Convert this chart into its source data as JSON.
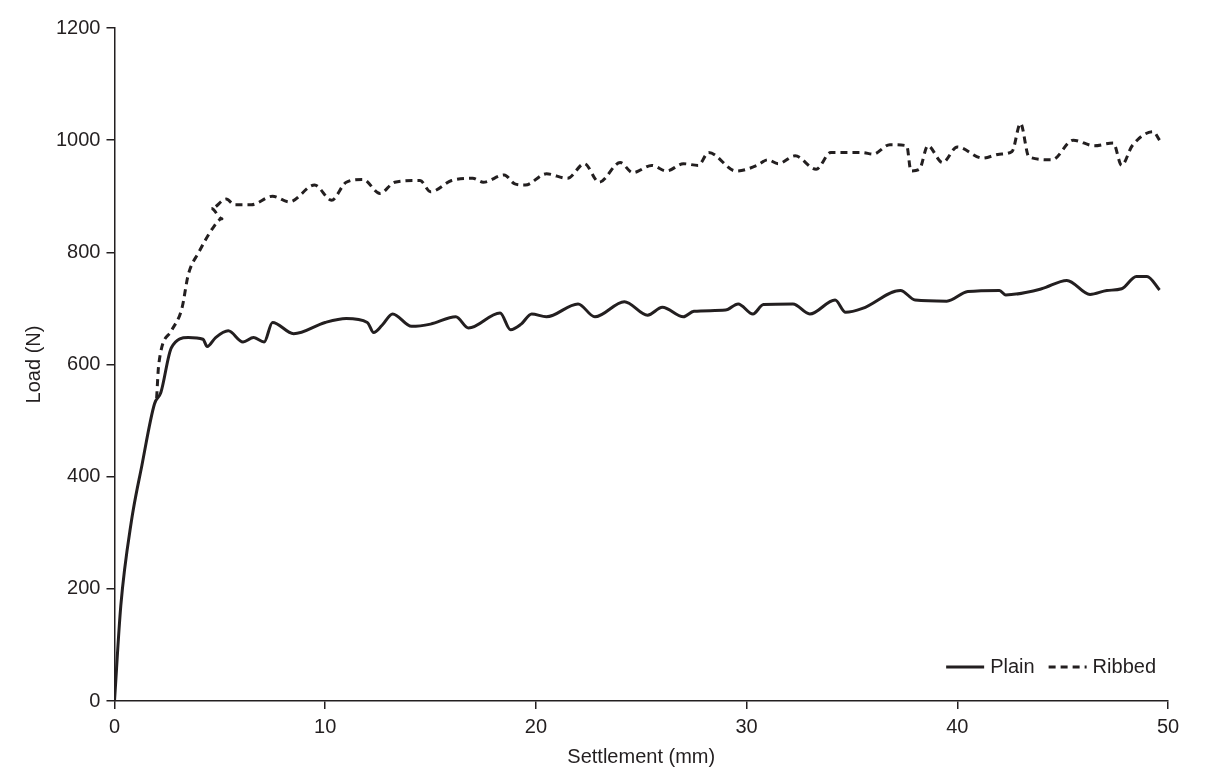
{
  "chart_data": {
    "type": "line",
    "xlabel": "Settlement (mm)",
    "ylabel": "Load (N)",
    "xlim": [
      0,
      50
    ],
    "xticks": [
      0,
      10,
      20,
      30,
      40,
      50
    ],
    "ylim": [
      0,
      1200
    ],
    "yticks": [
      0,
      200,
      400,
      600,
      800,
      1000,
      1200
    ],
    "grid": false,
    "legend": "bottom right",
    "marker": "none",
    "series": [
      {
        "name": "Plain",
        "color": "#231f20",
        "line_style": "solid",
        "x": [
          0,
          0.3,
          0.8,
          1.3,
          1.9,
          2.2,
          2.7,
          3.5,
          4.2,
          4.4,
          4.8,
          5.4,
          6.1,
          6.6,
          7.1,
          7.5,
          8.5,
          10,
          11,
          12,
          12.3,
          12.7,
          13.2,
          14.1,
          15,
          16.2,
          16.8,
          18.3,
          18.8,
          19.3,
          19.8,
          20.5,
          22,
          22.8,
          24.2,
          25.3,
          26,
          27,
          27.5,
          29,
          29.6,
          30.3,
          30.8,
          32.2,
          33,
          34.2,
          34.7,
          35.5,
          37.3,
          38,
          39.5,
          40.5,
          42,
          42.3,
          44,
          45.2,
          46.3,
          47.1,
          47.8,
          48.5,
          49,
          49.6
        ],
        "values": [
          0,
          170,
          320,
          420,
          530,
          550,
          630,
          648,
          645,
          632,
          648,
          660,
          640,
          648,
          640,
          675,
          655,
          675,
          682,
          675,
          657,
          670,
          690,
          668,
          672,
          685,
          665,
          692,
          662,
          672,
          690,
          685,
          708,
          685,
          712,
          688,
          702,
          685,
          695,
          697,
          708,
          690,
          707,
          708,
          690,
          715,
          693,
          700,
          732,
          715,
          713,
          730,
          732,
          724,
          735,
          750,
          725,
          732,
          735,
          757,
          757,
          733
        ]
      },
      {
        "name": "Ribbed",
        "color": "#231f20",
        "line_style": "dashed",
        "x": [
          2,
          2.1,
          2.7,
          3.2,
          3.5,
          4,
          4.7,
          5.1,
          4.6,
          5.3,
          5.7,
          6.5,
          7.5,
          8.3,
          9.5,
          10.3,
          11,
          11.8,
          12.6,
          13.3,
          14.5,
          15,
          16,
          17,
          17.5,
          18.5,
          19,
          19.5,
          20.5,
          21.5,
          22.3,
          23,
          24,
          24.6,
          25.5,
          26.2,
          27,
          27.7,
          28.2,
          29.5,
          30.5,
          31,
          31.5,
          32.3,
          33.3,
          34,
          35.5,
          36,
          36.8,
          37.6,
          37.8,
          38.2,
          38.6,
          39.3,
          40,
          41.2,
          42,
          42.6,
          43,
          43.4,
          44.5,
          45.5,
          46.5,
          47.4,
          47.8,
          48.3,
          49.3,
          49.6
        ],
        "values": [
          540,
          600,
          660,
          700,
          760,
          800,
          845,
          860,
          878,
          895,
          885,
          885,
          900,
          890,
          920,
          893,
          925,
          930,
          905,
          925,
          928,
          908,
          928,
          932,
          925,
          938,
          922,
          920,
          940,
          932,
          958,
          925,
          960,
          942,
          955,
          945,
          958,
          955,
          978,
          945,
          955,
          965,
          958,
          972,
          948,
          978,
          978,
          975,
          992,
          990,
          945,
          948,
          990,
          960,
          988,
          968,
          975,
          980,
          1030,
          970,
          965,
          1000,
          990,
          995,
          955,
          990,
          1015,
          1000
        ]
      }
    ]
  }
}
